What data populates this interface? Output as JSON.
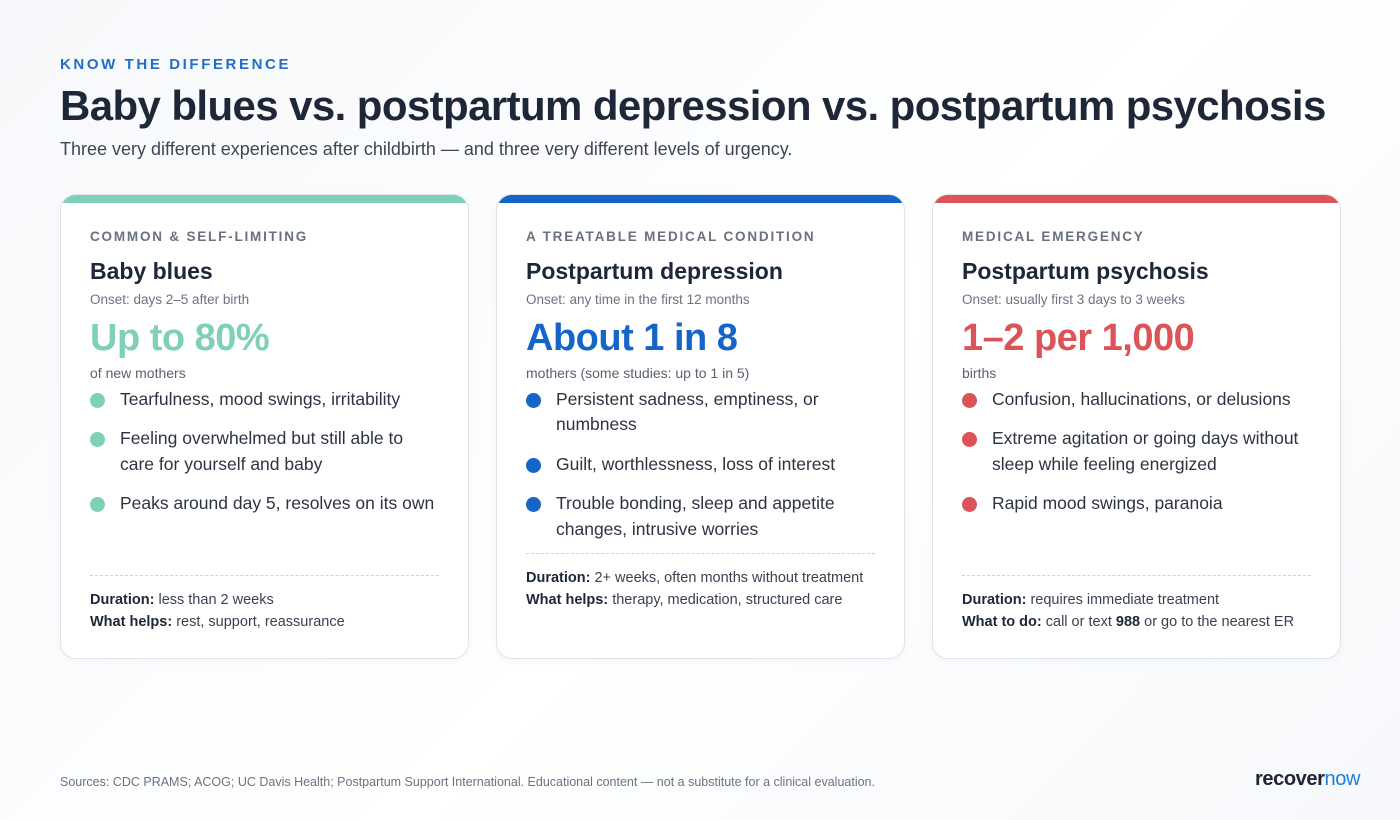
{
  "header": {
    "eyebrow": "KNOW THE DIFFERENCE",
    "title": "Baby blues vs. postpartum depression vs. postpartum psychosis",
    "subtitle": "Three very different experiences after childbirth — and three very different levels of urgency."
  },
  "colors": {
    "blues": "#7fd0b9",
    "depression": "#1565c8",
    "psychosis": "#dc5358"
  },
  "cards": [
    {
      "kicker": "COMMON & SELF-LIMITING",
      "name": "Baby blues",
      "onset": "Onset: days 2–5 after birth",
      "stat": "Up to 80%",
      "stat_sub": "of new mothers",
      "bullets": [
        "Tearfulness, mood swings, irritability",
        "Feeling overwhelmed but still able to care for yourself and baby",
        "Peaks around day 5, resolves on its own"
      ],
      "duration_label": "Duration:",
      "duration_value": "less than 2 weeks",
      "help_label": "What helps:",
      "help_value": "rest, support, reassurance"
    },
    {
      "kicker": "A TREATABLE MEDICAL CONDITION",
      "name": "Postpartum depression",
      "onset": "Onset: any time in the first 12 months",
      "stat": "About 1 in 8",
      "stat_sub": "mothers (some studies: up to 1 in 5)",
      "bullets": [
        "Persistent sadness, emptiness, or numbness",
        "Guilt, worthlessness, loss of interest",
        "Trouble bonding, sleep and appetite changes, intrusive worries"
      ],
      "duration_label": "Duration:",
      "duration_value": "2+ weeks, often months without treatment",
      "help_label": "What helps:",
      "help_value": "therapy, medication, structured care"
    },
    {
      "kicker": "MEDICAL EMERGENCY",
      "name": "Postpartum psychosis",
      "onset": "Onset: usually first 3 days to 3 weeks",
      "stat": "1–2 per 1,000",
      "stat_sub": "births",
      "bullets": [
        "Confusion, hallucinations, or delusions",
        "Extreme agitation or going days without sleep while feeling energized",
        "Rapid mood swings, paranoia"
      ],
      "duration_label": "Duration:",
      "duration_value": "requires immediate treatment",
      "help_label": "What to do:",
      "help_value_pre": "call or text",
      "help_value_emph": "988",
      "help_value_post": "or go to the nearest ER"
    }
  ],
  "footer": {
    "sources": "Sources: CDC PRAMS; ACOG; UC Davis Health; Postpartum Support International. Educational content — not a substitute for a clinical evaluation.",
    "logo_a": "recover",
    "logo_b": "now"
  }
}
